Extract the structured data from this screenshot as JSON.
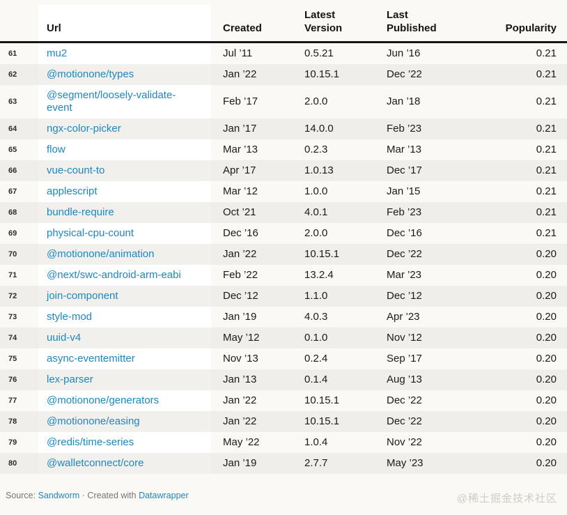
{
  "page": {
    "background_color": "#fbf9f5",
    "link_color": "#1d87c0",
    "stripe_color": "#efeeea",
    "header_rule_color": "#161616"
  },
  "table": {
    "headers": {
      "url": "Url",
      "created": "Created",
      "latest_version": "Latest Version",
      "last_published": "Last Published",
      "popularity": "Popularity"
    },
    "rows": [
      {
        "num": "61",
        "url": "mu2",
        "created": "Jul ’11",
        "latest_version": "0.5.21",
        "last_published": "Jun ’16",
        "popularity": "0.21"
      },
      {
        "num": "62",
        "url": "@motionone/types",
        "created": "Jan ’22",
        "latest_version": "10.15.1",
        "last_published": "Dec ’22",
        "popularity": "0.21"
      },
      {
        "num": "63",
        "url": "@segment/loosely-validate-event",
        "created": "Feb ’17",
        "latest_version": "2.0.0",
        "last_published": "Jan ’18",
        "popularity": "0.21"
      },
      {
        "num": "64",
        "url": "ngx-color-picker",
        "created": "Jan ’17",
        "latest_version": "14.0.0",
        "last_published": "Feb ’23",
        "popularity": "0.21"
      },
      {
        "num": "65",
        "url": "flow",
        "created": "Mar ’13",
        "latest_version": "0.2.3",
        "last_published": "Mar ’13",
        "popularity": "0.21"
      },
      {
        "num": "66",
        "url": "vue-count-to",
        "created": "Apr ’17",
        "latest_version": "1.0.13",
        "last_published": "Dec ’17",
        "popularity": "0.21"
      },
      {
        "num": "67",
        "url": "applescript",
        "created": "Mar ’12",
        "latest_version": "1.0.0",
        "last_published": "Jan ’15",
        "popularity": "0.21"
      },
      {
        "num": "68",
        "url": "bundle-require",
        "created": "Oct ’21",
        "latest_version": "4.0.1",
        "last_published": "Feb ’23",
        "popularity": "0.21"
      },
      {
        "num": "69",
        "url": "physical-cpu-count",
        "created": "Dec ’16",
        "latest_version": "2.0.0",
        "last_published": "Dec ’16",
        "popularity": "0.21"
      },
      {
        "num": "70",
        "url": "@motionone/animation",
        "created": "Jan ’22",
        "latest_version": "10.15.1",
        "last_published": "Dec ’22",
        "popularity": "0.20"
      },
      {
        "num": "71",
        "url": "@next/swc-android-arm-eabi",
        "created": "Feb ’22",
        "latest_version": "13.2.4",
        "last_published": "Mar ’23",
        "popularity": "0.20"
      },
      {
        "num": "72",
        "url": "join-component",
        "created": "Dec ’12",
        "latest_version": "1.1.0",
        "last_published": "Dec ’12",
        "popularity": "0.20"
      },
      {
        "num": "73",
        "url": "style-mod",
        "created": "Jan ’19",
        "latest_version": "4.0.3",
        "last_published": "Apr ’23",
        "popularity": "0.20"
      },
      {
        "num": "74",
        "url": "uuid-v4",
        "created": "May ’12",
        "latest_version": "0.1.0",
        "last_published": "Nov ’12",
        "popularity": "0.20"
      },
      {
        "num": "75",
        "url": "async-eventemitter",
        "created": "Nov ’13",
        "latest_version": "0.2.4",
        "last_published": "Sep ’17",
        "popularity": "0.20"
      },
      {
        "num": "76",
        "url": "lex-parser",
        "created": "Jan ’13",
        "latest_version": "0.1.4",
        "last_published": "Aug ’13",
        "popularity": "0.20"
      },
      {
        "num": "77",
        "url": "@motionone/generators",
        "created": "Jan ’22",
        "latest_version": "10.15.1",
        "last_published": "Dec ’22",
        "popularity": "0.20"
      },
      {
        "num": "78",
        "url": "@motionone/easing",
        "created": "Jan ’22",
        "latest_version": "10.15.1",
        "last_published": "Dec ’22",
        "popularity": "0.20"
      },
      {
        "num": "79",
        "url": "@redis/time-series",
        "created": "May ’22",
        "latest_version": "1.0.4",
        "last_published": "Nov ’22",
        "popularity": "0.20"
      },
      {
        "num": "80",
        "url": "@walletconnect/core",
        "created": "Jan ’19",
        "latest_version": "2.7.7",
        "last_published": "May ’23",
        "popularity": "0.20"
      }
    ]
  },
  "footer": {
    "source_label": "Source: ",
    "source_link": "Sandworm",
    "separator": " · ",
    "created_with_label": "Created with ",
    "tool_link": "Datawrapper"
  },
  "watermark": "@稀土掘金技术社区"
}
